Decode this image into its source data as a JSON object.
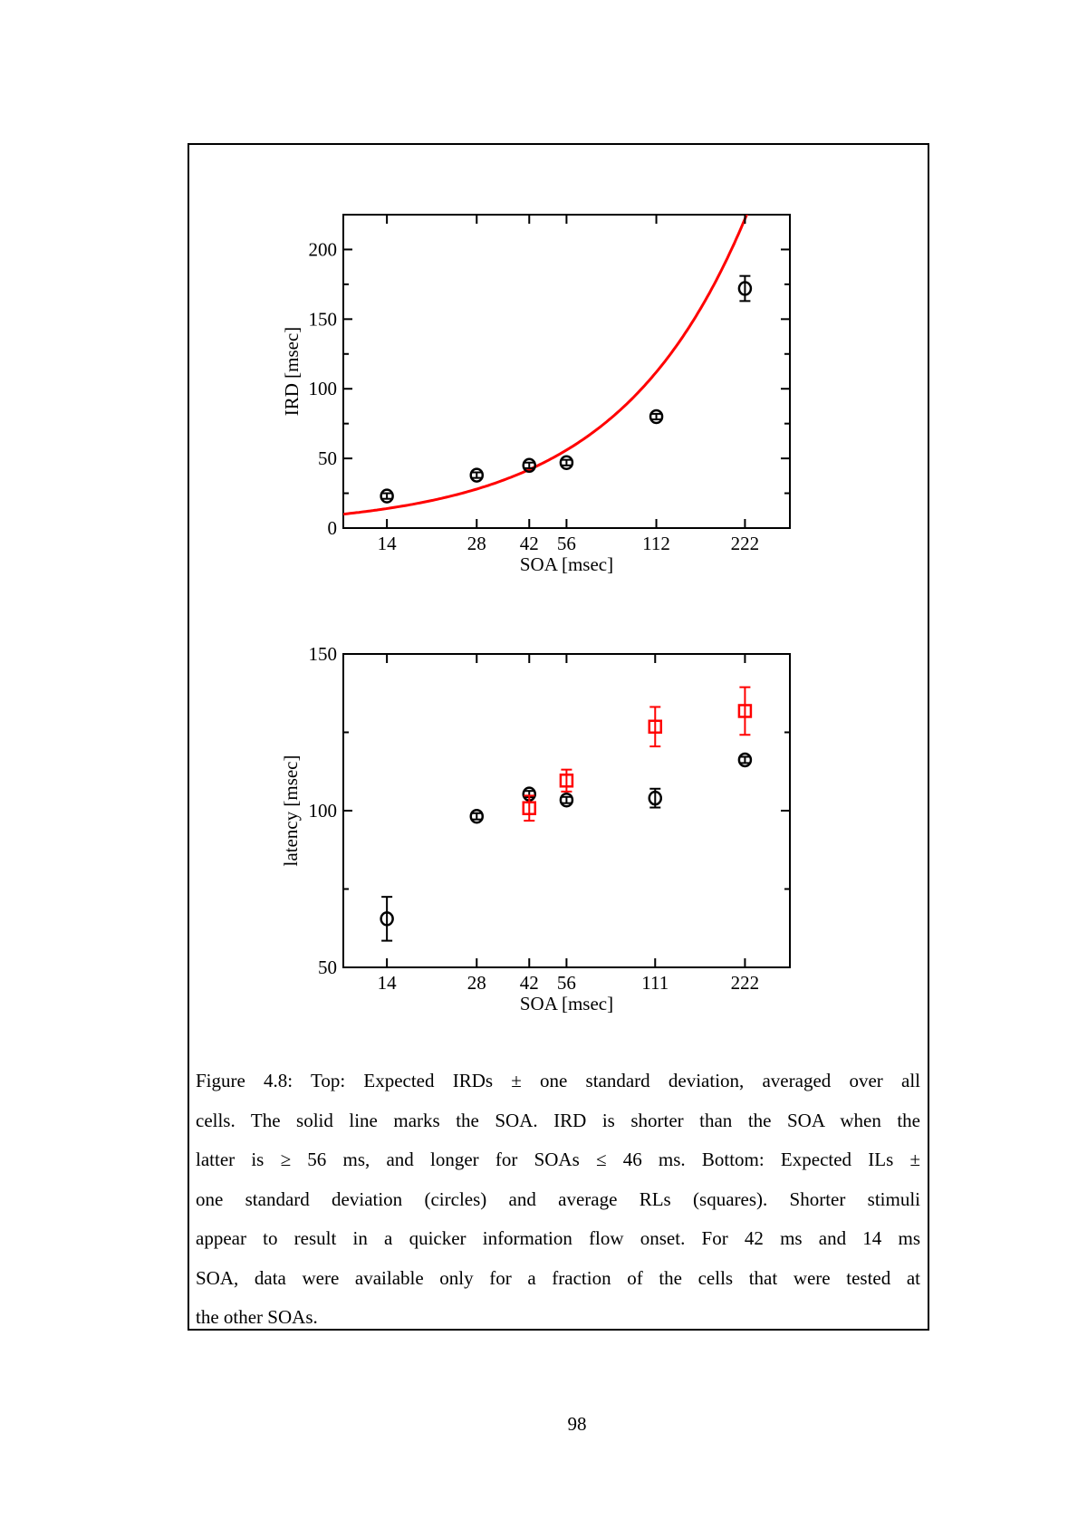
{
  "chart_data": [
    {
      "type": "scatter",
      "xlabel": "SOA [msec]",
      "ylabel": "IRD [msec]",
      "x_scale": "log",
      "xlim": [
        10,
        314
      ],
      "ylim": [
        0,
        225
      ],
      "x_ticks": [
        14,
        28,
        42,
        56,
        112,
        222
      ],
      "x_tick_labels": [
        "14",
        "28",
        "42",
        "56",
        "112",
        "222"
      ],
      "y_ticks": [
        0,
        50,
        100,
        150,
        200
      ],
      "y_tick_labels": [
        "0",
        "50",
        "100",
        "150",
        "200"
      ],
      "grid": false,
      "series": [
        {
          "marker": "circle",
          "color": "#000000",
          "x": [
            14,
            28,
            42,
            56,
            112,
            222
          ],
          "y": [
            23,
            38,
            45,
            47,
            80,
            172
          ],
          "yerr": [
            2,
            2,
            2,
            2,
            2,
            9
          ]
        }
      ],
      "reference_line": {
        "equation": "y = x",
        "color": "#ff0000"
      }
    },
    {
      "type": "scatter",
      "xlabel": "SOA [msec]",
      "ylabel": "latency [msec]",
      "x_scale": "log",
      "xlim": [
        10,
        314
      ],
      "ylim": [
        50,
        150
      ],
      "x_ticks": [
        14,
        28,
        42,
        56,
        111,
        222
      ],
      "x_tick_labels": [
        "14",
        "28",
        "42",
        "56",
        "111",
        "222"
      ],
      "y_ticks": [
        50,
        100,
        150
      ],
      "y_tick_labels": [
        "50",
        "100",
        "150"
      ],
      "grid": false,
      "series": [
        {
          "marker": "circle",
          "color": "#000000",
          "x": [
            14,
            28,
            42,
            56,
            111,
            222
          ],
          "y": [
            65.5,
            98.2,
            105.3,
            103.4,
            104,
            116.2
          ],
          "yerr": [
            7,
            1,
            1,
            1,
            3,
            1
          ]
        },
        {
          "marker": "square",
          "color": "#ff0000",
          "x": [
            42,
            56,
            111,
            222
          ],
          "y": [
            100.8,
            109.6,
            126.8,
            131.8
          ],
          "yerr": [
            4,
            3.5,
            6.3,
            7.6
          ]
        }
      ]
    }
  ],
  "caption": {
    "lines": [
      "Figure 4.8: Top: Expected IRDs ± one standard deviation, averaged over all",
      "cells.  The solid line marks the SOA. IRD is shorter than the SOA when the",
      "latter is ≥ 56 ms, and longer for SOAs ≤ 46 ms.  Bottom: Expected ILs ±",
      "one standard deviation (circles) and average RLs (squares).  Shorter stimuli",
      "appear to result in a quicker information flow onset.  For 42 ms and 14 ms",
      "SOA, data were available only for a fraction of the cells that were tested at",
      "the other SOAs."
    ]
  },
  "page_number": "98"
}
